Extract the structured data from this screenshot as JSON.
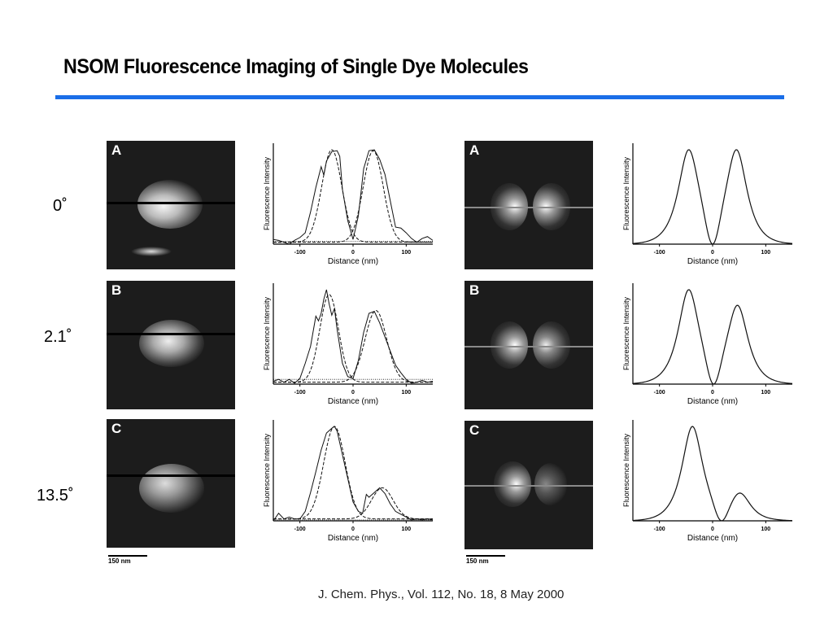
{
  "header": {
    "title": "NSOM Fluorescence Imaging of Single Dye Molecules",
    "rule_color": "#1a6ee8"
  },
  "angles": [
    "0˚",
    "2.1˚",
    "13.5˚"
  ],
  "panels": [
    {
      "label": "A",
      "angle": "0˚"
    },
    {
      "label": "B",
      "angle": "2.1˚"
    },
    {
      "label": "C",
      "angle": "13.5˚"
    }
  ],
  "scale_bar": "150 nm",
  "caption": "J. Chem. Phys., Vol. 112, No. 18, 8 May 2000",
  "chart_data": [
    {
      "type": "line",
      "panel": "A",
      "kind": "experimental",
      "title": "",
      "xlabel": "Distance (nm)",
      "ylabel": "Fluorescence Intensity",
      "xlim": [
        -150,
        150
      ],
      "xticks": [
        -100,
        0,
        100
      ],
      "series": [
        {
          "name": "data",
          "style": "solid",
          "x": [
            -150,
            -140,
            -130,
            -120,
            -110,
            -100,
            -90,
            -80,
            -70,
            -60,
            -55,
            -50,
            -40,
            -30,
            -25,
            -20,
            -10,
            0,
            10,
            20,
            30,
            40,
            50,
            60,
            70,
            80,
            90,
            100,
            110,
            120,
            130,
            140,
            150
          ],
          "y": [
            0.05,
            0.04,
            0.02,
            0.0,
            0.04,
            0.07,
            0.12,
            0.34,
            0.6,
            0.82,
            0.73,
            0.88,
            0.98,
            0.99,
            0.93,
            0.58,
            0.25,
            0.05,
            0.3,
            0.8,
            0.99,
            1.0,
            0.9,
            0.74,
            0.46,
            0.18,
            0.17,
            0.12,
            0.06,
            0.02,
            0.06,
            0.08,
            0.04
          ]
        },
        {
          "name": "fit left",
          "style": "dashed",
          "peak": -40,
          "amp": 0.98,
          "width": 28
        },
        {
          "name": "fit right",
          "style": "dashed",
          "peak": 38,
          "amp": 0.97,
          "width": 28
        },
        {
          "name": "baseline",
          "style": "dotted",
          "y": 0.03
        }
      ]
    },
    {
      "type": "line",
      "panel": "B",
      "kind": "experimental",
      "title": "",
      "xlabel": "Distance (nm)",
      "ylabel": "Fluorescence Intensity",
      "xlim": [
        -150,
        150
      ],
      "xticks": [
        -100,
        0,
        100
      ],
      "series": [
        {
          "name": "data",
          "style": "solid",
          "x": [
            -150,
            -140,
            -130,
            -120,
            -110,
            -100,
            -90,
            -80,
            -70,
            -65,
            -60,
            -55,
            -50,
            -45,
            -40,
            -35,
            -30,
            -25,
            -20,
            -10,
            0,
            10,
            20,
            30,
            40,
            50,
            60,
            70,
            80,
            90,
            100,
            110,
            120,
            130,
            140,
            150
          ],
          "y": [
            0.03,
            0.05,
            0.02,
            0.05,
            0.01,
            0.06,
            0.22,
            0.4,
            0.72,
            0.67,
            0.75,
            0.9,
            1.0,
            0.85,
            0.73,
            0.8,
            0.58,
            0.4,
            0.22,
            0.08,
            0.06,
            0.25,
            0.55,
            0.75,
            0.77,
            0.65,
            0.5,
            0.35,
            0.2,
            0.12,
            0.05,
            0.01,
            0.02,
            0.04,
            0.02,
            0.03
          ]
        },
        {
          "name": "fit left",
          "style": "dashed",
          "peak": -45,
          "amp": 0.93,
          "width": 26
        },
        {
          "name": "fit right",
          "style": "dashed",
          "peak": 43,
          "amp": 0.76,
          "width": 30
        },
        {
          "name": "baseline",
          "style": "dotted",
          "y": 0.05
        }
      ]
    },
    {
      "type": "line",
      "panel": "C",
      "kind": "experimental",
      "title": "",
      "xlabel": "Distance (nm)",
      "ylabel": "Fluorescence Intensity",
      "xlim": [
        -150,
        150
      ],
      "xticks": [
        -100,
        0,
        100
      ],
      "series": [
        {
          "name": "data",
          "style": "solid",
          "x": [
            -150,
            -140,
            -130,
            -120,
            -110,
            -100,
            -90,
            -80,
            -70,
            -60,
            -50,
            -40,
            -35,
            -30,
            -20,
            -10,
            0,
            10,
            18,
            25,
            30,
            40,
            50,
            60,
            70,
            80,
            90,
            100,
            110,
            120,
            130,
            140,
            150
          ],
          "y": [
            0.0,
            0.08,
            0.02,
            0.04,
            0.02,
            0.02,
            0.1,
            0.3,
            0.52,
            0.75,
            0.93,
            0.98,
            1.0,
            0.95,
            0.7,
            0.45,
            0.2,
            0.1,
            0.08,
            0.28,
            0.25,
            0.3,
            0.35,
            0.29,
            0.18,
            0.1,
            0.07,
            0.04,
            0.01,
            0.02,
            0.01,
            0.02,
            0.01
          ]
        },
        {
          "name": "fit left",
          "style": "dashed",
          "peak": -35,
          "amp": 0.98,
          "width": 30
        },
        {
          "name": "fit right",
          "style": "dashed",
          "peak": 55,
          "amp": 0.33,
          "width": 30
        },
        {
          "name": "baseline",
          "style": "dotted",
          "y": 0.01
        }
      ]
    },
    {
      "type": "line",
      "panel": "A",
      "kind": "simulated",
      "xlabel": "Distance (nm)",
      "ylabel": "Fluorescence Intensity",
      "xlim": [
        -150,
        150
      ],
      "xticks": [
        -100,
        0,
        100
      ],
      "node": 0,
      "peaks": [
        {
          "x": -45,
          "amp": 1.0
        },
        {
          "x": 45,
          "amp": 1.0
        }
      ]
    },
    {
      "type": "line",
      "panel": "B",
      "kind": "simulated",
      "xlabel": "Distance (nm)",
      "ylabel": "Fluorescence Intensity",
      "xlim": [
        -150,
        150
      ],
      "xticks": [
        -100,
        0,
        100
      ],
      "node": 2,
      "peaks": [
        {
          "x": -45,
          "amp": 1.0
        },
        {
          "x": 47,
          "amp": 0.83
        }
      ]
    },
    {
      "type": "line",
      "panel": "C",
      "kind": "simulated",
      "xlabel": "Distance (nm)",
      "ylabel": "Fluorescence Intensity",
      "xlim": [
        -150,
        150
      ],
      "xticks": [
        -100,
        0,
        100
      ],
      "node": 17,
      "peaks": [
        {
          "x": -38,
          "amp": 1.0
        },
        {
          "x": 52,
          "amp": 0.28
        }
      ]
    }
  ]
}
